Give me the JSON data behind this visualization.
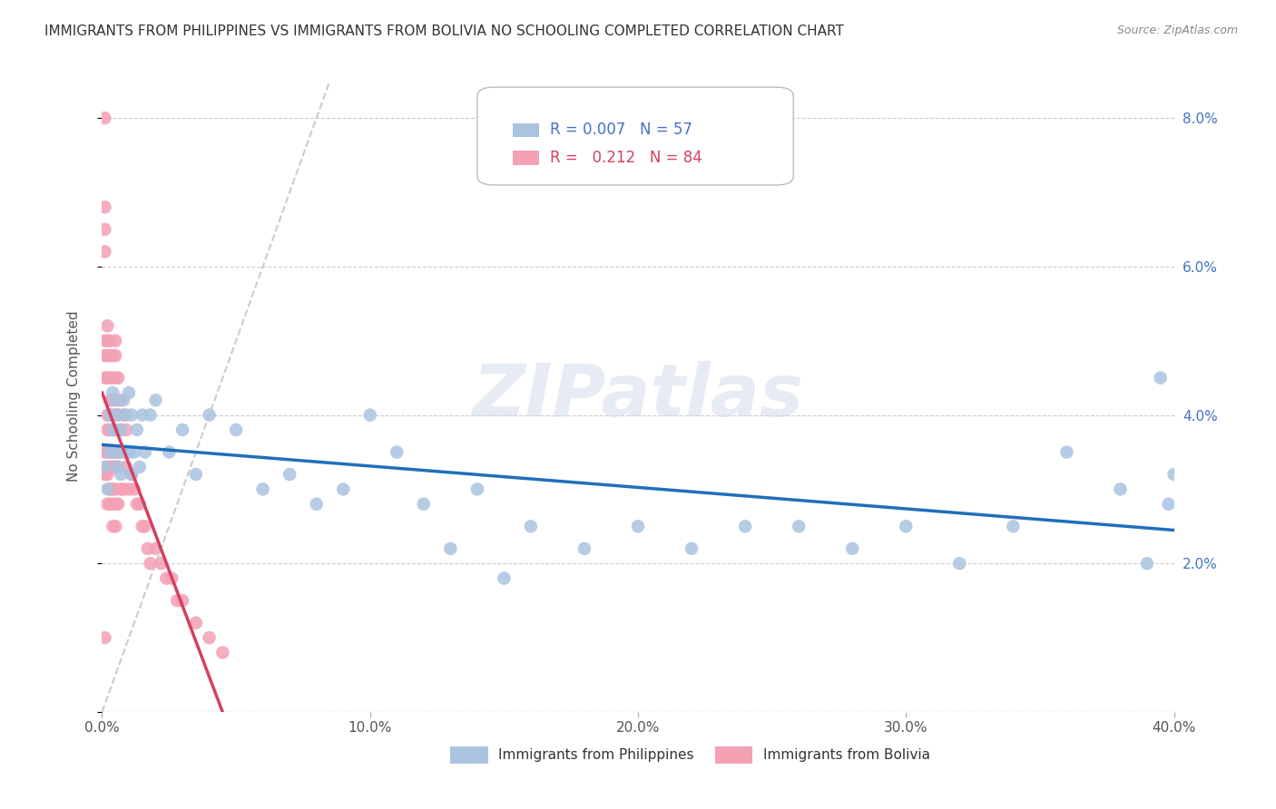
{
  "title": "IMMIGRANTS FROM PHILIPPINES VS IMMIGRANTS FROM BOLIVIA NO SCHOOLING COMPLETED CORRELATION CHART",
  "source": "Source: ZipAtlas.com",
  "ylabel": "No Schooling Completed",
  "xlim": [
    0.0,
    0.4
  ],
  "ylim": [
    0.0,
    0.085
  ],
  "xticks": [
    0.0,
    0.1,
    0.2,
    0.3,
    0.4
  ],
  "xtick_labels": [
    "0.0%",
    "10.0%",
    "20.0%",
    "30.0%",
    "40.0%"
  ],
  "yticks": [
    0.0,
    0.02,
    0.04,
    0.06,
    0.08
  ],
  "ytick_labels": [
    "",
    "2.0%",
    "4.0%",
    "6.0%",
    "8.0%"
  ],
  "grid_color": "#cccccc",
  "background_color": "#ffffff",
  "philippines_color": "#aac4e0",
  "bolivia_color": "#f4a0b5",
  "philippines_R": 0.007,
  "philippines_N": 57,
  "bolivia_R": 0.212,
  "bolivia_N": 84,
  "philippines_trend_color": "#1f6fba",
  "bolivia_trend_color": "#d44060",
  "diagonal_color": "#cccccc",
  "title_fontsize": 11,
  "axis_label_fontsize": 11,
  "tick_fontsize": 11,
  "legend_fontsize": 12,
  "watermark_text": "ZIPatlas",
  "phil_x": [
    0.001,
    0.002,
    0.003,
    0.003,
    0.004,
    0.004,
    0.005,
    0.005,
    0.006,
    0.006,
    0.007,
    0.007,
    0.008,
    0.008,
    0.009,
    0.01,
    0.01,
    0.011,
    0.011,
    0.012,
    0.013,
    0.014,
    0.015,
    0.016,
    0.018,
    0.02,
    0.025,
    0.03,
    0.035,
    0.04,
    0.05,
    0.06,
    0.07,
    0.08,
    0.09,
    0.1,
    0.11,
    0.12,
    0.13,
    0.14,
    0.15,
    0.16,
    0.18,
    0.2,
    0.22,
    0.24,
    0.26,
    0.28,
    0.3,
    0.32,
    0.34,
    0.36,
    0.38,
    0.39,
    0.395,
    0.398,
    0.4
  ],
  "phil_y": [
    0.033,
    0.03,
    0.04,
    0.035,
    0.043,
    0.038,
    0.042,
    0.035,
    0.04,
    0.033,
    0.038,
    0.032,
    0.042,
    0.035,
    0.04,
    0.043,
    0.035,
    0.04,
    0.032,
    0.035,
    0.038,
    0.033,
    0.04,
    0.035,
    0.04,
    0.042,
    0.035,
    0.038,
    0.032,
    0.04,
    0.038,
    0.03,
    0.032,
    0.028,
    0.03,
    0.04,
    0.035,
    0.028,
    0.022,
    0.03,
    0.018,
    0.025,
    0.022,
    0.025,
    0.022,
    0.025,
    0.025,
    0.022,
    0.025,
    0.02,
    0.025,
    0.035,
    0.03,
    0.02,
    0.045,
    0.028,
    0.032
  ],
  "bol_x": [
    0.001,
    0.001,
    0.001,
    0.001,
    0.001,
    0.001,
    0.001,
    0.001,
    0.001,
    0.001,
    0.002,
    0.002,
    0.002,
    0.002,
    0.002,
    0.002,
    0.002,
    0.002,
    0.002,
    0.002,
    0.003,
    0.003,
    0.003,
    0.003,
    0.003,
    0.003,
    0.003,
    0.003,
    0.003,
    0.003,
    0.004,
    0.004,
    0.004,
    0.004,
    0.004,
    0.004,
    0.004,
    0.004,
    0.004,
    0.004,
    0.005,
    0.005,
    0.005,
    0.005,
    0.005,
    0.005,
    0.005,
    0.005,
    0.005,
    0.005,
    0.006,
    0.006,
    0.006,
    0.006,
    0.006,
    0.006,
    0.007,
    0.007,
    0.007,
    0.007,
    0.008,
    0.008,
    0.008,
    0.009,
    0.009,
    0.01,
    0.01,
    0.011,
    0.012,
    0.013,
    0.014,
    0.015,
    0.016,
    0.017,
    0.018,
    0.02,
    0.022,
    0.024,
    0.026,
    0.028,
    0.03,
    0.035,
    0.04,
    0.045
  ],
  "bol_y": [
    0.08,
    0.068,
    0.065,
    0.062,
    0.05,
    0.048,
    0.045,
    0.035,
    0.032,
    0.01,
    0.052,
    0.05,
    0.048,
    0.045,
    0.04,
    0.038,
    0.035,
    0.033,
    0.032,
    0.028,
    0.05,
    0.048,
    0.045,
    0.042,
    0.04,
    0.038,
    0.035,
    0.033,
    0.03,
    0.028,
    0.048,
    0.045,
    0.042,
    0.04,
    0.038,
    0.035,
    0.033,
    0.03,
    0.028,
    0.025,
    0.05,
    0.048,
    0.045,
    0.04,
    0.038,
    0.035,
    0.033,
    0.03,
    0.028,
    0.025,
    0.045,
    0.042,
    0.04,
    0.035,
    0.033,
    0.028,
    0.042,
    0.038,
    0.035,
    0.03,
    0.04,
    0.035,
    0.03,
    0.038,
    0.033,
    0.035,
    0.03,
    0.032,
    0.03,
    0.028,
    0.028,
    0.025,
    0.025,
    0.022,
    0.02,
    0.022,
    0.02,
    0.018,
    0.018,
    0.015,
    0.015,
    0.012,
    0.01,
    0.008
  ]
}
